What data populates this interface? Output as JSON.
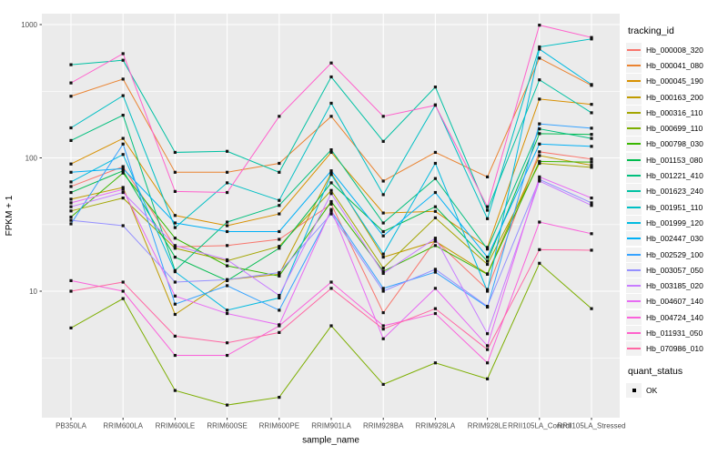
{
  "figure": {
    "background": "#FFFFFF",
    "panel_background": "#EBEBEB",
    "grid_color": "#FFFFFF",
    "tick_label_color": "#4D4D4D",
    "axis_title_color": "#000000",
    "point_color": "#111111"
  },
  "axes": {
    "x_title": "sample_name",
    "y_title": "FPKM + 1"
  },
  "legend": {
    "tracking_title": "tracking_id",
    "quant_title": "quant_status",
    "quant_items": [
      "OK"
    ]
  },
  "chart_data": {
    "type": "line",
    "title": "",
    "xlabel": "sample_name",
    "ylabel": "FPKM + 1",
    "y_scale": "log10",
    "ylim": [
      1,
      1100
    ],
    "y_ticks": [
      10,
      100,
      1000
    ],
    "y_minor_ticks": [
      3.16,
      31.6,
      316
    ],
    "grid": true,
    "legend_position": "right",
    "legend_title": "tracking_id",
    "quant_status": {
      "title": "quant_status",
      "items": [
        "OK"
      ]
    },
    "categories": [
      "PB350LA",
      "RRIM600LA",
      "RRIM600LE",
      "RRIM600SE",
      "RRIM600PE",
      "RRIM901LA",
      "RRIM928BA",
      "RRIM928LA",
      "RRIM928LE",
      "RRII105LA_Control",
      "RRII105LA_Stressed"
    ],
    "series": [
      {
        "name": "Hb_000008_320",
        "color": "#F8766D",
        "values": [
          61,
          86,
          21.5,
          22,
          24.5,
          45,
          6.9,
          24,
          10.3,
          111,
          98
        ]
      },
      {
        "name": "Hb_000041_080",
        "color": "#EA8331",
        "values": [
          290,
          390,
          78,
          78,
          91,
          205,
          67,
          110,
          72,
          560,
          350
        ]
      },
      {
        "name": "Hb_000045_190",
        "color": "#D89000",
        "values": [
          90,
          140,
          37,
          31,
          38,
          110,
          38.6,
          39.7,
          21.3,
          276,
          252
        ]
      },
      {
        "name": "Hb_000163_200",
        "color": "#C09B00",
        "values": [
          49,
          60,
          6.7,
          12.2,
          13.4,
          77,
          18,
          23.7,
          13.5,
          104,
          88
        ]
      },
      {
        "name": "Hb_000316_110",
        "color": "#A3A500",
        "values": [
          40,
          50,
          21,
          16.9,
          21.7,
          57,
          14.9,
          35.5,
          15.9,
          91,
          85
        ]
      },
      {
        "name": "Hb_000699_110",
        "color": "#7CAE00",
        "values": [
          5.3,
          8.8,
          1.8,
          1.4,
          1.6,
          5.5,
          2,
          2.9,
          2.2,
          16.2,
          7.4
        ]
      },
      {
        "name": "Hb_000798_030",
        "color": "#39B600",
        "values": [
          36,
          77,
          25,
          15.5,
          13,
          47,
          14.1,
          22,
          13.4,
          94,
          93
        ]
      },
      {
        "name": "Hb_001153_080",
        "color": "#00BB4E",
        "values": [
          55,
          80,
          18,
          12,
          21,
          65,
          28,
          43,
          16.8,
          152,
          150
        ]
      },
      {
        "name": "Hb_001221_410",
        "color": "#00BF7D",
        "values": [
          135,
          209,
          14.3,
          33,
          44,
          115,
          32.5,
          70,
          20.7,
          165,
          140
        ]
      },
      {
        "name": "Hb_001623_240",
        "color": "#00C1A3",
        "values": [
          500,
          540,
          110,
          112,
          78,
          405,
          133,
          340,
          40.5,
          385,
          218
        ]
      },
      {
        "name": "Hb_001951_110",
        "color": "#00BFC4",
        "values": [
          168,
          293,
          30,
          65,
          48,
          257,
          53,
          250,
          35,
          680,
          780
        ]
      },
      {
        "name": "Hb_001999_120",
        "color": "#00BAE0",
        "values": [
          66,
          106,
          14,
          7.2,
          8.9,
          75,
          19,
          91,
          10,
          655,
          355
        ]
      },
      {
        "name": "Hb_002447_030",
        "color": "#00B0F6",
        "values": [
          78,
          83,
          32.5,
          28,
          28,
          80,
          26,
          55,
          18,
          127,
          122
        ]
      },
      {
        "name": "Hb_002529_100",
        "color": "#35A2FF",
        "values": [
          32,
          127,
          8,
          11,
          7.2,
          40,
          10.5,
          13.9,
          7.6,
          180,
          167
        ]
      },
      {
        "name": "Hb_003057_050",
        "color": "#9590FF",
        "values": [
          34,
          31,
          11.7,
          12.2,
          13.8,
          38,
          10,
          14.6,
          7.7,
          69,
          46
        ]
      },
      {
        "name": "Hb_003185_020",
        "color": "#C77CFF",
        "values": [
          43,
          55,
          22,
          17.2,
          9.3,
          54,
          13.6,
          25,
          4.8,
          67,
          44
        ]
      },
      {
        "name": "Hb_004607_140",
        "color": "#E76BF3",
        "values": [
          46,
          58,
          9.2,
          6.8,
          5.6,
          41,
          4.4,
          10.5,
          3.9,
          72,
          50
        ]
      },
      {
        "name": "Hb_004724_140",
        "color": "#FA62DB",
        "values": [
          12,
          10,
          3.3,
          3.3,
          5.5,
          11.7,
          5.5,
          6.8,
          2.9,
          33,
          27
        ]
      },
      {
        "name": "Hb_011931_050",
        "color": "#FF61CC",
        "values": [
          365,
          605,
          56,
          55,
          205,
          515,
          205,
          248,
          43,
          990,
          800
        ]
      },
      {
        "name": "Hb_070986_010",
        "color": "#FF67A4",
        "values": [
          10,
          11.7,
          4.6,
          4.1,
          4.9,
          10.5,
          5.2,
          7.4,
          3.65,
          20.5,
          20.3
        ]
      }
    ]
  }
}
